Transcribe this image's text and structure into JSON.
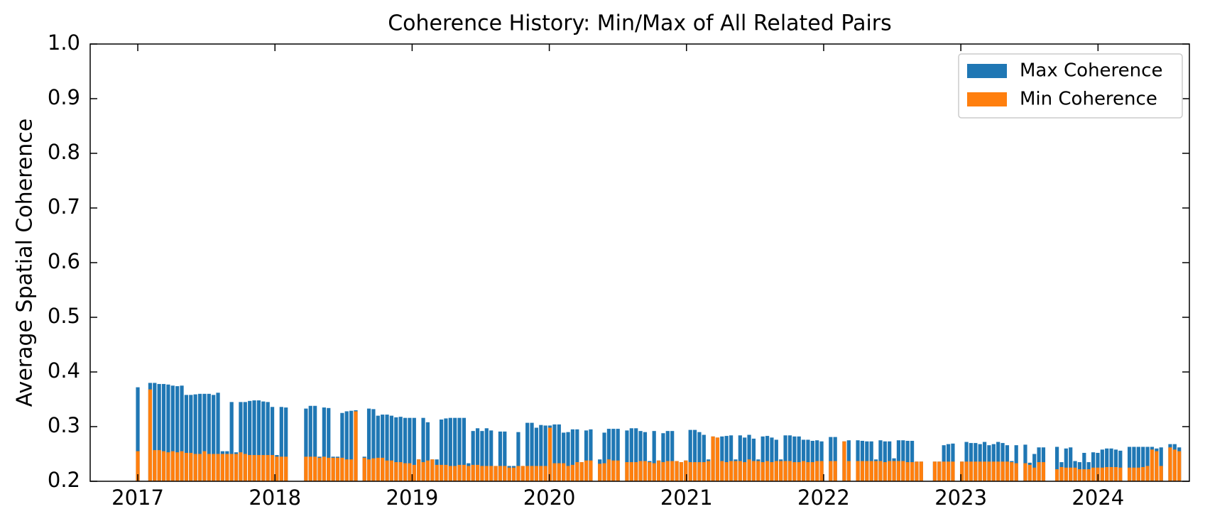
{
  "chart_data": {
    "type": "bar",
    "title": "Coherence History: Min/Max of All Related Pairs",
    "y_label": "Average Spatial Coherence",
    "x": [
      2017.0,
      2017.09,
      2017.123,
      2017.156,
      2017.189,
      2017.222,
      2017.255,
      2017.288,
      2017.321,
      2017.354,
      2017.387,
      2017.42,
      2017.453,
      2017.486,
      2017.519,
      2017.552,
      2017.585,
      2017.618,
      2017.651,
      2017.684,
      2017.717,
      2017.75,
      2017.783,
      2017.816,
      2017.849,
      2017.882,
      2017.915,
      2017.948,
      2017.981,
      2018.014,
      2018.047,
      2018.08,
      2018.226,
      2018.259,
      2018.292,
      2018.325,
      2018.358,
      2018.391,
      2018.424,
      2018.457,
      2018.49,
      2018.523,
      2018.556,
      2018.589,
      2018.652,
      2018.685,
      2018.718,
      2018.751,
      2018.784,
      2018.817,
      2018.85,
      2018.883,
      2018.916,
      2018.949,
      2018.982,
      2019.015,
      2019.048,
      2019.081,
      2019.114,
      2019.147,
      2019.18,
      2019.213,
      2019.246,
      2019.279,
      2019.312,
      2019.345,
      2019.378,
      2019.411,
      2019.444,
      2019.477,
      2019.51,
      2019.543,
      2019.576,
      2019.609,
      2019.642,
      2019.675,
      2019.708,
      2019.741,
      2019.774,
      2019.807,
      2019.84,
      2019.873,
      2019.906,
      2019.939,
      2019.972,
      2020.005,
      2020.038,
      2020.071,
      2020.104,
      2020.137,
      2020.17,
      2020.203,
      2020.236,
      2020.269,
      2020.302,
      2020.368,
      2020.401,
      2020.434,
      2020.467,
      2020.5,
      2020.566,
      2020.599,
      2020.632,
      2020.665,
      2020.698,
      2020.731,
      2020.764,
      2020.797,
      2020.83,
      2020.863,
      2020.896,
      2020.929,
      2020.962,
      2020.995,
      2021.028,
      2021.061,
      2021.094,
      2021.127,
      2021.16,
      2021.193,
      2021.226,
      2021.259,
      2021.292,
      2021.325,
      2021.358,
      2021.391,
      2021.424,
      2021.457,
      2021.49,
      2021.523,
      2021.556,
      2021.589,
      2021.622,
      2021.655,
      2021.688,
      2021.721,
      2021.754,
      2021.787,
      2021.82,
      2021.853,
      2021.886,
      2021.919,
      2021.952,
      2021.985,
      2022.051,
      2022.084,
      2022.15,
      2022.183,
      2022.249,
      2022.282,
      2022.315,
      2022.348,
      2022.381,
      2022.414,
      2022.447,
      2022.48,
      2022.513,
      2022.546,
      2022.579,
      2022.612,
      2022.645,
      2022.678,
      2022.711,
      2022.81,
      2022.843,
      2022.876,
      2022.909,
      2022.942,
      2023.008,
      2023.041,
      2023.074,
      2023.107,
      2023.14,
      2023.173,
      2023.206,
      2023.239,
      2023.272,
      2023.305,
      2023.338,
      2023.371,
      2023.404,
      2023.47,
      2023.503,
      2023.536,
      2023.569,
      2023.602,
      2023.701,
      2023.734,
      2023.767,
      2023.8,
      2023.833,
      2023.866,
      2023.899,
      2023.932,
      2023.965,
      2023.998,
      2024.031,
      2024.064,
      2024.097,
      2024.13,
      2024.163,
      2024.229,
      2024.262,
      2024.295,
      2024.328,
      2024.361,
      2024.394,
      2024.427,
      2024.46,
      2024.526,
      2024.559,
      2024.592
    ],
    "series": [
      {
        "name": "Max Coherence",
        "color": "#1f77b4",
        "values": [
          0.372,
          0.38,
          0.38,
          0.378,
          0.378,
          0.377,
          0.375,
          0.374,
          0.375,
          0.358,
          0.358,
          0.359,
          0.36,
          0.36,
          0.36,
          0.358,
          0.362,
          0.255,
          0.255,
          0.345,
          0.253,
          0.345,
          0.345,
          0.347,
          0.348,
          0.348,
          0.346,
          0.345,
          0.336,
          0.248,
          0.336,
          0.335,
          0.333,
          0.338,
          0.338,
          0.245,
          0.335,
          0.334,
          0.245,
          0.245,
          0.325,
          0.328,
          0.329,
          0.33,
          0.245,
          0.333,
          0.332,
          0.32,
          0.322,
          0.322,
          0.32,
          0.317,
          0.318,
          0.316,
          0.316,
          0.316,
          0.24,
          0.316,
          0.308,
          0.24,
          0.24,
          0.313,
          0.315,
          0.316,
          0.316,
          0.316,
          0.316,
          0.233,
          0.292,
          0.297,
          0.292,
          0.297,
          0.293,
          0.228,
          0.291,
          0.291,
          0.228,
          0.228,
          0.29,
          0.228,
          0.307,
          0.307,
          0.298,
          0.303,
          0.302,
          0.302,
          0.304,
          0.304,
          0.289,
          0.29,
          0.295,
          0.295,
          0.235,
          0.293,
          0.295,
          0.24,
          0.289,
          0.296,
          0.296,
          0.296,
          0.293,
          0.297,
          0.297,
          0.292,
          0.29,
          0.237,
          0.292,
          0.238,
          0.288,
          0.292,
          0.292,
          0.237,
          0.235,
          0.238,
          0.294,
          0.294,
          0.29,
          0.285,
          0.24,
          0.282,
          0.28,
          0.282,
          0.283,
          0.284,
          0.24,
          0.284,
          0.28,
          0.285,
          0.278,
          0.24,
          0.282,
          0.283,
          0.28,
          0.276,
          0.24,
          0.284,
          0.284,
          0.282,
          0.282,
          0.276,
          0.276,
          0.274,
          0.275,
          0.273,
          0.281,
          0.281,
          0.273,
          0.275,
          0.275,
          0.274,
          0.273,
          0.273,
          0.24,
          0.275,
          0.273,
          0.273,
          0.242,
          0.275,
          0.275,
          0.274,
          0.274,
          0.236,
          0.236,
          0.236,
          0.236,
          0.266,
          0.268,
          0.269,
          0.236,
          0.272,
          0.27,
          0.27,
          0.268,
          0.272,
          0.266,
          0.268,
          0.272,
          0.27,
          0.266,
          0.237,
          0.266,
          0.267,
          0.234,
          0.25,
          0.262,
          0.262,
          0.263,
          0.235,
          0.26,
          0.262,
          0.237,
          0.235,
          0.252,
          0.235,
          0.253,
          0.252,
          0.258,
          0.26,
          0.26,
          0.258,
          0.256,
          0.263,
          0.263,
          0.263,
          0.263,
          0.263,
          0.263,
          0.26,
          0.262,
          0.268,
          0.268,
          0.262
        ]
      },
      {
        "name": "Min Coherence",
        "color": "#ff7f0e",
        "values": [
          0.255,
          0.368,
          0.257,
          0.257,
          0.255,
          0.253,
          0.255,
          0.253,
          0.255,
          0.252,
          0.252,
          0.25,
          0.25,
          0.255,
          0.25,
          0.25,
          0.25,
          0.25,
          0.25,
          0.25,
          0.25,
          0.253,
          0.25,
          0.248,
          0.248,
          0.248,
          0.248,
          0.248,
          0.248,
          0.245,
          0.245,
          0.245,
          0.245,
          0.245,
          0.245,
          0.243,
          0.245,
          0.243,
          0.243,
          0.243,
          0.243,
          0.24,
          0.24,
          0.328,
          0.243,
          0.24,
          0.242,
          0.243,
          0.243,
          0.238,
          0.238,
          0.235,
          0.235,
          0.233,
          0.233,
          0.23,
          0.24,
          0.235,
          0.238,
          0.24,
          0.23,
          0.23,
          0.23,
          0.228,
          0.228,
          0.23,
          0.23,
          0.228,
          0.23,
          0.23,
          0.228,
          0.228,
          0.228,
          0.228,
          0.228,
          0.228,
          0.225,
          0.225,
          0.228,
          0.228,
          0.228,
          0.228,
          0.228,
          0.228,
          0.228,
          0.298,
          0.233,
          0.233,
          0.233,
          0.228,
          0.23,
          0.235,
          0.235,
          0.238,
          0.238,
          0.232,
          0.233,
          0.24,
          0.238,
          0.238,
          0.235,
          0.235,
          0.235,
          0.237,
          0.237,
          0.235,
          0.233,
          0.238,
          0.235,
          0.237,
          0.237,
          0.237,
          0.235,
          0.238,
          0.235,
          0.235,
          0.235,
          0.235,
          0.237,
          0.282,
          0.28,
          0.237,
          0.235,
          0.237,
          0.237,
          0.237,
          0.235,
          0.24,
          0.237,
          0.237,
          0.235,
          0.237,
          0.235,
          0.237,
          0.237,
          0.237,
          0.237,
          0.235,
          0.235,
          0.237,
          0.235,
          0.235,
          0.237,
          0.237,
          0.237,
          0.237,
          0.273,
          0.237,
          0.237,
          0.237,
          0.237,
          0.237,
          0.237,
          0.237,
          0.235,
          0.237,
          0.237,
          0.237,
          0.237,
          0.235,
          0.235,
          0.236,
          0.236,
          0.236,
          0.236,
          0.236,
          0.236,
          0.236,
          0.236,
          0.236,
          0.236,
          0.236,
          0.236,
          0.236,
          0.236,
          0.236,
          0.236,
          0.236,
          0.236,
          0.235,
          0.233,
          0.233,
          0.23,
          0.225,
          0.235,
          0.235,
          0.222,
          0.226,
          0.225,
          0.225,
          0.225,
          0.222,
          0.222,
          0.222,
          0.225,
          0.225,
          0.225,
          0.226,
          0.226,
          0.226,
          0.225,
          0.225,
          0.225,
          0.225,
          0.226,
          0.228,
          0.258,
          0.255,
          0.228,
          0.262,
          0.258,
          0.255
        ]
      }
    ],
    "xlim": [
      2016.653,
      2024.666
    ],
    "xticks": [
      2017,
      2018,
      2019,
      2020,
      2021,
      2022,
      2023,
      2024
    ],
    "ylim": [
      0.2,
      1.0
    ],
    "yticks": [
      0.2,
      0.3,
      0.4,
      0.5,
      0.6,
      0.7,
      0.8,
      0.9,
      {
        "value": 1.0,
        "label": "1.0"
      }
    ],
    "bar_width": 0.027,
    "legend": "upper right",
    "grid": false
  }
}
